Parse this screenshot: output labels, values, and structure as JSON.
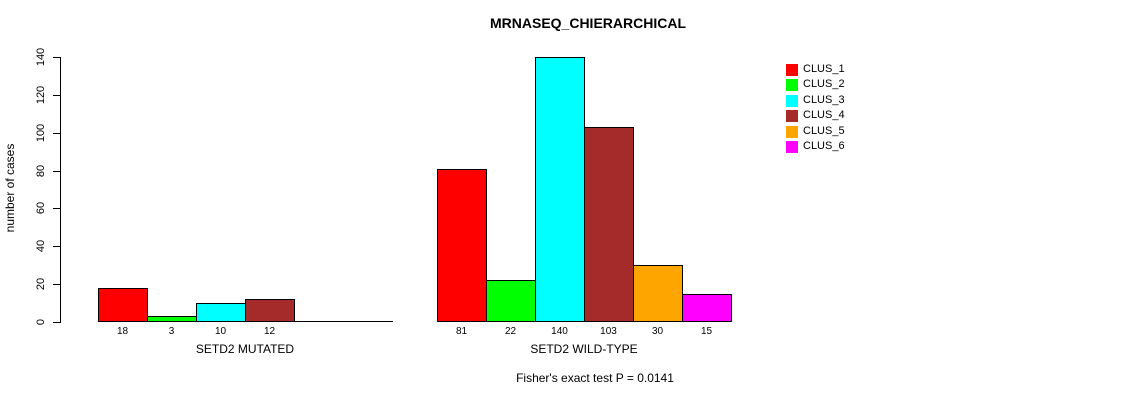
{
  "chart_data": {
    "type": "bar",
    "title": "MRNASEQ_CHIERARCHICAL",
    "ylabel": "number of cases",
    "ylim": [
      0,
      140
    ],
    "yticks": [
      0,
      20,
      40,
      60,
      80,
      100,
      120,
      140
    ],
    "grid": false,
    "bar_border_color": "#000000",
    "series_colors": [
      "#FF0000",
      "#00FF00",
      "#00FFFF",
      "#A52A2A",
      "#FFA500",
      "#FF00FF"
    ],
    "groups": [
      {
        "label": "SETD2 MUTATED",
        "values": [
          18,
          3,
          10,
          12,
          0,
          0
        ]
      },
      {
        "label": "SETD2 WILD-TYPE",
        "values": [
          81,
          22,
          140,
          103,
          30,
          15
        ]
      }
    ],
    "legend": {
      "position": "right",
      "entries": [
        "CLUS_1",
        "CLUS_2",
        "CLUS_3",
        "CLUS_4",
        "CLUS_5",
        "CLUS_6"
      ],
      "colors": [
        "#FF0000",
        "#00FF00",
        "#00FFFF",
        "#A52A2A",
        "#FFA500",
        "#FF00FF"
      ]
    },
    "annotation": "Fisher's exact test P = 0.0141"
  }
}
